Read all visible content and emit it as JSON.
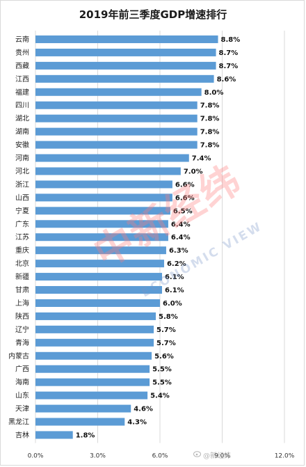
{
  "chart_data": {
    "type": "bar",
    "orientation": "horizontal",
    "title": "2019年前三季度GDP增速排行",
    "categories": [
      "云南",
      "贵州",
      "西藏",
      "江西",
      "福建",
      "四川",
      "湖北",
      "湖南",
      "安徽",
      "河南",
      "河北",
      "浙江",
      "山西",
      "宁夏",
      "广东",
      "江苏",
      "重庆",
      "北京",
      "新疆",
      "甘肃",
      "上海",
      "陕西",
      "辽宁",
      "青海",
      "内蒙古",
      "广西",
      "海南",
      "山东",
      "天津",
      "黑龙江",
      "吉林"
    ],
    "values": [
      8.8,
      8.7,
      8.7,
      8.6,
      8.0,
      7.8,
      7.8,
      7.8,
      7.8,
      7.4,
      7.0,
      6.6,
      6.6,
      6.5,
      6.4,
      6.4,
      6.3,
      6.2,
      6.1,
      6.1,
      6.0,
      5.8,
      5.7,
      5.7,
      5.6,
      5.5,
      5.5,
      5.4,
      4.6,
      4.3,
      1.8
    ],
    "value_labels": [
      "8.8%",
      "8.7%",
      "8.7%",
      "8.6%",
      "8.0%",
      "7.8%",
      "7.8%",
      "7.8%",
      "7.8%",
      "7.4%",
      "7.0%",
      "6.6%",
      "6.6%",
      "6.5%",
      "6.4%",
      "6.4%",
      "6.3%",
      "6.2%",
      "6.1%",
      "6.1%",
      "6.0%",
      "5.8%",
      "5.7%",
      "5.7%",
      "5.6%",
      "5.5%",
      "5.5%",
      "5.4%",
      "4.6%",
      "4.3%",
      "1.8%"
    ],
    "xlim": [
      0,
      12
    ],
    "x_ticks": [
      0,
      3,
      6,
      9,
      12
    ],
    "x_tick_labels": [
      "0.0%",
      "3.0%",
      "6.0%",
      "9.0%",
      "12.0%"
    ],
    "grid": true,
    "bar_color": "#5b9bd5",
    "xlabel": "",
    "ylabel": ""
  },
  "watermark": {
    "cn": "中新经纬",
    "en": "ECONOMIC VIEW"
  },
  "source_mark": "@新经纬"
}
